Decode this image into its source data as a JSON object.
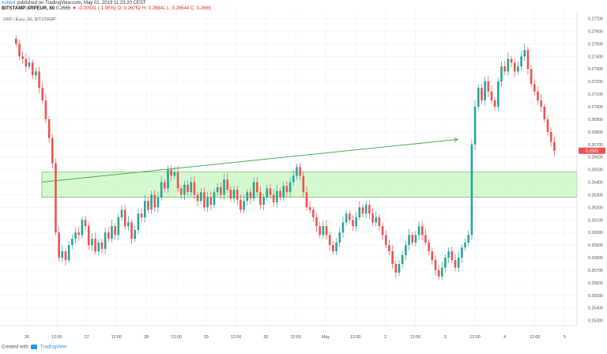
{
  "header": {
    "published_by": "published on TradingView.com, May 01, 2019 11:23:20 CEST",
    "author": "nobleit",
    "symbol": "BITSTAMP:XRPEUR, 60",
    "price": "0.2665",
    "change": "▼ -0.00531 (-1.95%)",
    "ohlc": "O: 0.26752 H: 0.26841 L: 0.26544 C: 0.2665"
  },
  "legend": "XRP / Euro, 60, BITSTAMP",
  "footer": {
    "created_with": "Created with",
    "brand": "TradingView"
  },
  "colors": {
    "up": "#26a69a",
    "down": "#ef5350",
    "trendline": "#4caf50",
    "zone_fill": "#c8f5c2",
    "zone_border": "#4caf50",
    "grid": "#eef1f5",
    "price_tag": "#ef5350"
  },
  "chart_data": {
    "type": "candlestick",
    "symbol": "XRP / Euro, 60, BITSTAMP",
    "x_ticks": [
      "26",
      "12:00",
      "27",
      "12:00",
      "28",
      "12:00",
      "29",
      "12:00",
      "30",
      "12:00",
      "May",
      "12:00",
      "2",
      "12:00",
      "3",
      "12:00",
      "4",
      "12:00",
      "5"
    ],
    "y_ticks": [
      "0.27700",
      "0.27600",
      "0.27500",
      "0.27400",
      "0.27300",
      "0.27200",
      "0.27100",
      "0.27000",
      "0.26900",
      "0.26800",
      "0.26700",
      "0.26600",
      "0.26500",
      "0.26400",
      "0.26300",
      "0.26200",
      "0.26100",
      "0.26000",
      "0.25900",
      "0.25800",
      "0.25700",
      "0.25600",
      "0.25500",
      "0.25400",
      "0.25300"
    ],
    "ylim": [
      0.2526,
      0.2776
    ],
    "last_price": "0.2665",
    "candles_close": [
      0.275,
      0.274,
      0.2738,
      0.2732,
      0.2735,
      0.2725,
      0.2728,
      0.2715,
      0.2705,
      0.269,
      0.2675,
      0.2655,
      0.26,
      0.258,
      0.2585,
      0.2578,
      0.259,
      0.2595,
      0.26,
      0.2598,
      0.261,
      0.2605,
      0.259,
      0.2595,
      0.2585,
      0.2592,
      0.2587,
      0.26,
      0.2595,
      0.2605,
      0.2598,
      0.2612,
      0.2618,
      0.2605,
      0.2608,
      0.2595,
      0.2602,
      0.2615,
      0.2612,
      0.2625,
      0.2618,
      0.263,
      0.262,
      0.2628,
      0.264,
      0.2635,
      0.265,
      0.2645,
      0.2648,
      0.2635,
      0.263,
      0.2638,
      0.2632,
      0.264,
      0.263,
      0.2625,
      0.2632,
      0.262,
      0.2628,
      0.2622,
      0.2632,
      0.2636,
      0.263,
      0.2642,
      0.2634,
      0.2627,
      0.2634,
      0.2626,
      0.2618,
      0.2625,
      0.2632,
      0.2627,
      0.264,
      0.2632,
      0.2622,
      0.2628,
      0.2635,
      0.263,
      0.2624,
      0.2633,
      0.2628,
      0.2637,
      0.2632,
      0.264,
      0.2645,
      0.2652,
      0.2645,
      0.2632,
      0.262,
      0.2618,
      0.2612,
      0.2605,
      0.2598,
      0.2605,
      0.2598,
      0.259,
      0.2585,
      0.2592,
      0.26,
      0.2608,
      0.2615,
      0.261,
      0.2605,
      0.2612,
      0.262,
      0.2615,
      0.2622,
      0.2615,
      0.2608,
      0.2612,
      0.2605,
      0.2598,
      0.259,
      0.2585,
      0.2575,
      0.2568,
      0.2575,
      0.2582,
      0.259,
      0.2598,
      0.2592,
      0.2598,
      0.2605,
      0.2598,
      0.2592,
      0.2585,
      0.2578,
      0.257,
      0.2565,
      0.2572,
      0.258,
      0.2585,
      0.2578,
      0.2572,
      0.258,
      0.2588,
      0.2592,
      0.2598,
      0.267,
      0.27,
      0.2715,
      0.2705,
      0.272,
      0.2712,
      0.2705,
      0.27,
      0.272,
      0.2732,
      0.2728,
      0.2738,
      0.2735,
      0.2728,
      0.2732,
      0.274,
      0.2745,
      0.273,
      0.2718,
      0.2712,
      0.2705,
      0.27,
      0.269,
      0.268,
      0.2672,
      0.2665
    ],
    "trendline": {
      "from_slot": 12,
      "from_price": 0.264,
      "to_slot": 141,
      "to_price": 0.2674
    },
    "zone": {
      "from_slot": 12,
      "to_slot": 178,
      "top": 0.2648,
      "bottom": 0.2628
    },
    "x_slots": 178
  }
}
